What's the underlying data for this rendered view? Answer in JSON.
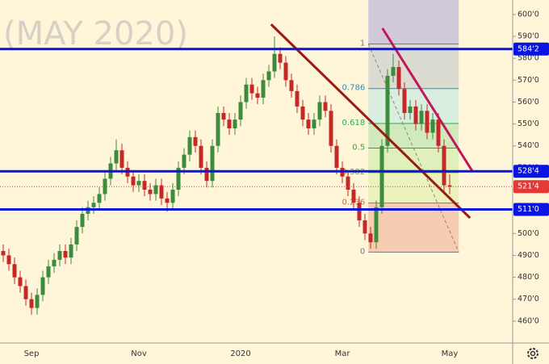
{
  "chart_data": {
    "type": "candlestick",
    "title": "(MAY 2020)",
    "categories": [
      null,
      null,
      null,
      null,
      null,
      "Sep",
      null,
      null,
      null,
      null,
      null,
      null,
      null,
      null,
      null,
      null,
      null,
      null,
      null,
      null,
      null,
      null,
      null,
      null,
      "Nov",
      null,
      null,
      null,
      null,
      null,
      null,
      null,
      null,
      null,
      null,
      null,
      null,
      null,
      null,
      null,
      null,
      null,
      "2020",
      null,
      null,
      null,
      null,
      null,
      null,
      null,
      null,
      null,
      null,
      null,
      null,
      null,
      null,
      null,
      null,
      null,
      "Mar",
      null,
      null,
      null,
      null,
      null,
      null,
      null,
      null,
      null,
      null,
      null,
      null,
      null,
      null,
      null,
      null,
      null,
      null,
      "May"
    ],
    "open": [
      492,
      490,
      486,
      480,
      476,
      470,
      466,
      472,
      480,
      485,
      488,
      492,
      489,
      495,
      503,
      509,
      512,
      514,
      518,
      525,
      532,
      538,
      530,
      526,
      522,
      524,
      520,
      518,
      522,
      516,
      514,
      520,
      530,
      536,
      544,
      540,
      530,
      524,
      540,
      555,
      552,
      548,
      552,
      560,
      568,
      564,
      562,
      570,
      574,
      582,
      578,
      570,
      565,
      558,
      552,
      548,
      552,
      560,
      556,
      540,
      530,
      526,
      520,
      514,
      506,
      500,
      496,
      512,
      540,
      572,
      576,
      566,
      555,
      558,
      550,
      556,
      546,
      552,
      540,
      522
    ],
    "high": [
      495,
      493,
      489,
      483,
      479,
      473,
      475,
      483,
      488,
      491,
      495,
      495,
      498,
      506,
      512,
      515,
      517,
      521,
      528,
      535,
      543,
      541,
      533,
      529,
      527,
      527,
      523,
      525,
      525,
      519,
      523,
      533,
      539,
      547,
      547,
      543,
      533,
      543,
      558,
      558,
      555,
      555,
      563,
      571,
      571,
      567,
      573,
      577,
      590,
      585,
      581,
      573,
      568,
      561,
      555,
      555,
      563,
      563,
      559,
      543,
      533,
      529,
      523,
      517,
      509,
      503,
      515,
      543,
      575,
      582,
      579,
      569,
      561,
      561,
      559,
      559,
      555,
      555,
      543,
      527
    ],
    "low": [
      487,
      483,
      477,
      473,
      467,
      463,
      463,
      469,
      477,
      482,
      485,
      486,
      486,
      492,
      500,
      506,
      509,
      511,
      515,
      522,
      529,
      527,
      523,
      519,
      519,
      517,
      515,
      515,
      513,
      510,
      511,
      517,
      527,
      533,
      537,
      527,
      521,
      521,
      537,
      549,
      545,
      545,
      549,
      557,
      561,
      559,
      559,
      567,
      571,
      575,
      567,
      562,
      555,
      549,
      545,
      545,
      549,
      553,
      537,
      527,
      523,
      517,
      511,
      503,
      497,
      493,
      493,
      509,
      537,
      569,
      563,
      552,
      552,
      547,
      547,
      543,
      543,
      537,
      519,
      518
    ],
    "close": [
      490,
      486,
      480,
      476,
      470,
      466,
      472,
      480,
      485,
      488,
      492,
      489,
      495,
      503,
      509,
      512,
      514,
      518,
      525,
      532,
      538,
      530,
      526,
      522,
      524,
      520,
      518,
      522,
      516,
      514,
      520,
      530,
      536,
      544,
      540,
      530,
      524,
      540,
      555,
      552,
      548,
      552,
      560,
      568,
      564,
      562,
      570,
      574,
      582,
      578,
      570,
      565,
      558,
      552,
      548,
      552,
      560,
      556,
      540,
      530,
      526,
      520,
      514,
      506,
      500,
      496,
      512,
      540,
      572,
      576,
      566,
      555,
      558,
      550,
      556,
      546,
      552,
      540,
      522,
      521.4
    ],
    "up_color": "#3d8b3d",
    "down_color": "#c62828",
    "ylim": [
      450,
      606.6
    ],
    "yticks": [
      {
        "value": 460,
        "label": "460'0"
      },
      {
        "value": 470,
        "label": "470'0"
      },
      {
        "value": 480,
        "label": "480'0"
      },
      {
        "value": 490,
        "label": "490'0"
      },
      {
        "value": 500,
        "label": "500'0"
      },
      {
        "value": 510,
        "label": "510'0"
      },
      {
        "value": 520,
        "label": "520'0"
      },
      {
        "value": 530,
        "label": "530'0"
      },
      {
        "value": 540,
        "label": "540'0"
      },
      {
        "value": 550,
        "label": "550'0"
      },
      {
        "value": 560,
        "label": "560'0"
      },
      {
        "value": 570,
        "label": "570'0"
      },
      {
        "value": 580,
        "label": "580'0"
      },
      {
        "value": 590,
        "label": "590'0"
      },
      {
        "value": 600,
        "label": "600'0"
      }
    ],
    "levels": [
      {
        "value": 584.2,
        "label": "584'2"
      },
      {
        "value": 528.4,
        "label": "528'4"
      },
      {
        "value": 511.0,
        "label": "511'0"
      }
    ],
    "level_color": "#0a14e0",
    "last_price": {
      "value": 521.4,
      "label": "521'4",
      "color": "#e53935"
    },
    "fibonacci": {
      "low": 491.5,
      "high": 586.5,
      "x": [
        64.6,
        80.6
      ],
      "levels": [
        1,
        0.786,
        0.618,
        0.5,
        0.382,
        0.236,
        0
      ],
      "zone_colors": [
        "#c9c1d8",
        "#d6d6d0",
        "#d3ecdf",
        "#c8e8b8",
        "#d9efb6",
        "#e9f1b9",
        "#f5c6a8"
      ]
    },
    "trendlines": [
      {
        "x": [
          47.4,
          82.6
        ],
        "y": [
          595.5,
          507.1
        ],
        "color": "#9b1b10"
      },
      {
        "x": [
          67.1,
          83
        ],
        "y": [
          593.7,
          528.5
        ],
        "color": "#c2185b"
      }
    ]
  }
}
